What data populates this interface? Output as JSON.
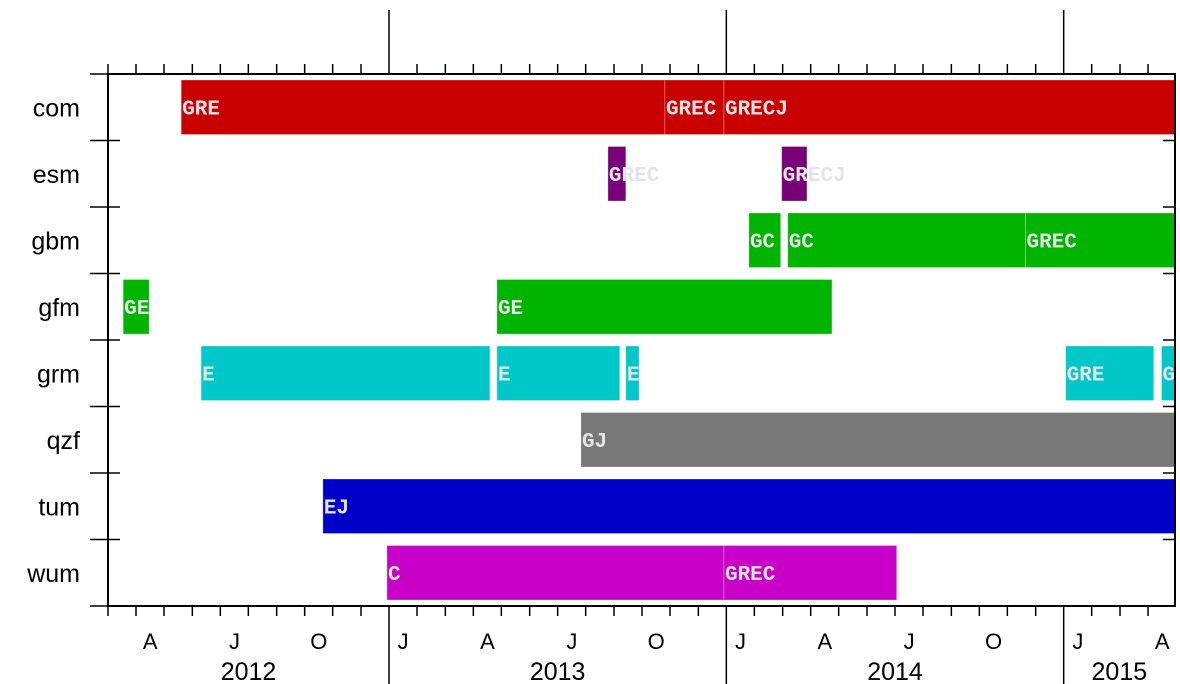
{
  "chart_data": {
    "type": "timeline",
    "xlim": [
      2012.167,
      2015.33
    ],
    "categories": [
      "com",
      "esm",
      "gbm",
      "gfm",
      "grm",
      "qzf",
      "tum",
      "wum"
    ],
    "rows": [
      {
        "color": "#c80000",
        "segments": [
          {
            "start": 2012.384,
            "end": 2013.818,
            "label": "GRE"
          },
          {
            "start": 2013.818,
            "end": 2013.993,
            "label": "GREC"
          },
          {
            "start": 2013.993,
            "end": 2015.33,
            "label": "GRECJ"
          }
        ]
      },
      {
        "color": "#780078",
        "segments": [
          {
            "start": 2013.649,
            "end": 2013.702,
            "label": "GREC"
          },
          {
            "start": 2014.164,
            "end": 2014.239,
            "label": "GRECJ"
          }
        ]
      },
      {
        "color": "#00b400",
        "segments": [
          {
            "start": 2014.067,
            "end": 2014.161,
            "label": "GC"
          },
          {
            "start": 2014.182,
            "end": 2014.887,
            "label": "GC"
          },
          {
            "start": 2014.887,
            "end": 2015.33,
            "label": "GREC"
          }
        ]
      },
      {
        "color": "#00b400",
        "segments": [
          {
            "start": 2012.212,
            "end": 2012.289,
            "label": "GE"
          },
          {
            "start": 2013.32,
            "end": 2014.313,
            "label": "GE"
          }
        ]
      },
      {
        "color": "#00c8c8",
        "segments": [
          {
            "start": 2012.443,
            "end": 2013.299,
            "label": "E"
          },
          {
            "start": 2013.32,
            "end": 2013.684,
            "label": "E"
          },
          {
            "start": 2013.702,
            "end": 2013.741,
            "label": "E"
          },
          {
            "start": 2015.006,
            "end": 2015.267,
            "label": "GRE"
          },
          {
            "start": 2015.29,
            "end": 2015.33,
            "label": "G"
          }
        ]
      },
      {
        "color": "#787878",
        "segments": [
          {
            "start": 2013.569,
            "end": 2015.33,
            "label": "GJ"
          }
        ]
      },
      {
        "color": "#0000c8",
        "segments": [
          {
            "start": 2012.804,
            "end": 2015.33,
            "label": "EJ"
          }
        ]
      },
      {
        "color": "#c800c8",
        "segments": [
          {
            "start": 2012.994,
            "end": 2013.993,
            "label": "C"
          },
          {
            "start": 2013.993,
            "end": 2014.505,
            "label": "GREC"
          }
        ]
      }
    ],
    "xticks": [
      {
        "value": 2012.292,
        "label": "A"
      },
      {
        "value": 2012.542,
        "label": "J"
      },
      {
        "value": 2012.792,
        "label": "O"
      },
      {
        "value": 2013.042,
        "label": "J"
      },
      {
        "value": 2013.292,
        "label": "A"
      },
      {
        "value": 2013.542,
        "label": "J"
      },
      {
        "value": 2013.792,
        "label": "O"
      },
      {
        "value": 2014.042,
        "label": "J"
      },
      {
        "value": 2014.292,
        "label": "A"
      },
      {
        "value": 2014.542,
        "label": "J"
      },
      {
        "value": 2014.792,
        "label": "O"
      },
      {
        "value": 2015.042,
        "label": "J"
      },
      {
        "value": 2015.292,
        "label": "A"
      }
    ],
    "minor_xticks": [
      2012.167,
      2012.25,
      2012.333,
      2012.417,
      2012.5,
      2012.583,
      2012.667,
      2012.75,
      2012.833,
      2012.917,
      2013.083,
      2013.167,
      2013.25,
      2013.333,
      2013.417,
      2013.5,
      2013.583,
      2013.667,
      2013.75,
      2013.833,
      2013.917,
      2014.083,
      2014.167,
      2014.25,
      2014.333,
      2014.417,
      2014.5,
      2014.583,
      2014.667,
      2014.75,
      2014.833,
      2014.917,
      2015.083,
      2015.167,
      2015.25
    ],
    "years": [
      2012,
      2013,
      2014,
      2015
    ]
  }
}
